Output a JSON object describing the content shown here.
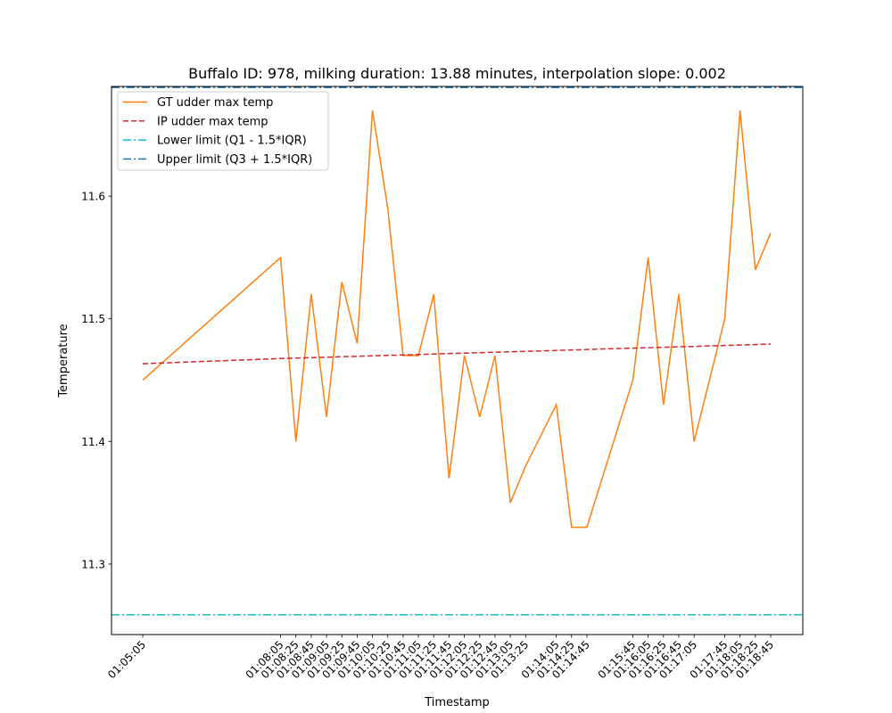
{
  "chart_data": {
    "type": "line",
    "title": "Buffalo ID: 978, milking duration: 13.88 minutes, interpolation slope: 0.002",
    "xlabel": "Timestamp",
    "ylabel": "Temperature",
    "ylim": [
      11.2425,
      11.6895
    ],
    "yticks": [
      "11.3",
      "11.4",
      "11.5",
      "11.6"
    ],
    "legend_position": "top-left",
    "grid": false,
    "x": [
      "01:05:05",
      "01:08:05",
      "01:08:25",
      "01:08:45",
      "01:09:05",
      "01:09:25",
      "01:09:45",
      "01:10:05",
      "01:10:25",
      "01:10:45",
      "01:11:05",
      "01:11:25",
      "01:11:45",
      "01:12:05",
      "01:12:25",
      "01:12:45",
      "01:13:05",
      "01:13:25",
      "01:14:05",
      "01:14:25",
      "01:14:45",
      "01:15:45",
      "01:16:05",
      "01:16:25",
      "01:16:45",
      "01:17:05",
      "01:17:45",
      "01:18:05",
      "01:18:25",
      "01:18:45"
    ],
    "series": [
      {
        "name": "GT udder max temp",
        "style": "solid",
        "color": "#ff7f0e",
        "values": [
          11.45,
          11.55,
          11.4,
          11.52,
          11.42,
          11.53,
          11.48,
          11.67,
          11.59,
          11.47,
          11.47,
          11.52,
          11.37,
          11.47,
          11.42,
          11.47,
          11.35,
          11.38,
          11.43,
          11.33,
          11.33,
          11.45,
          11.55,
          11.43,
          11.52,
          11.4,
          11.5,
          11.67,
          11.54,
          11.57
        ]
      },
      {
        "name": "IP udder max temp",
        "style": "dashed",
        "color": "#d62728",
        "values": [
          11.4634,
          11.4676,
          11.468,
          11.4683,
          11.4687,
          11.4691,
          11.4694,
          11.4698,
          11.4702,
          11.4705,
          11.4709,
          11.4713,
          11.4717,
          11.472,
          11.4724,
          11.4728,
          11.4731,
          11.4735,
          11.4742,
          11.4746,
          11.475,
          11.4761,
          11.4764,
          11.4768,
          11.4772,
          11.4775,
          11.4783,
          11.4786,
          11.479,
          11.4794
        ]
      }
    ],
    "hlines": [
      {
        "name": "Lower limit (Q1 - 1.5*IQR)",
        "value": 11.2587,
        "style": "dashdot",
        "color": "#17becf"
      },
      {
        "name": "Upper limit (Q3 + 1.5*IQR)",
        "value": 11.6887,
        "style": "dashdot",
        "color": "#1f77b4"
      }
    ]
  }
}
